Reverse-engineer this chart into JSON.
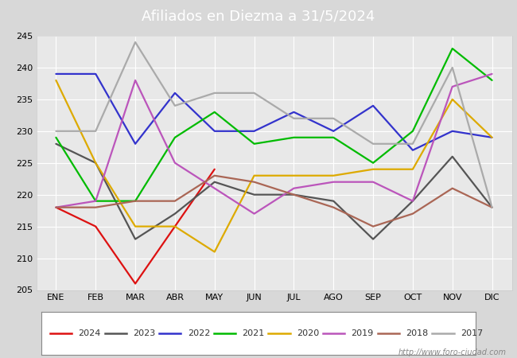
{
  "title": "Afiliados en Diezma a 31/5/2024",
  "url_text": "http://www.foro-ciudad.com",
  "months": [
    "ENE",
    "FEB",
    "MAR",
    "ABR",
    "MAY",
    "JUN",
    "JUL",
    "AGO",
    "SEP",
    "OCT",
    "NOV",
    "DIC"
  ],
  "ylim": [
    205,
    245
  ],
  "yticks": [
    205,
    210,
    215,
    220,
    225,
    230,
    235,
    240,
    245
  ],
  "series": [
    {
      "year": "2024",
      "color": "#dd1111",
      "data": [
        218,
        215,
        206,
        215,
        224,
        null,
        null,
        null,
        null,
        null,
        null,
        null
      ]
    },
    {
      "year": "2023",
      "color": "#555555",
      "data": [
        228,
        225,
        213,
        217,
        222,
        220,
        220,
        219,
        213,
        219,
        226,
        218
      ]
    },
    {
      "year": "2022",
      "color": "#3333cc",
      "data": [
        239,
        239,
        228,
        236,
        230,
        230,
        233,
        230,
        234,
        227,
        230,
        229
      ]
    },
    {
      "year": "2021",
      "color": "#00bb00",
      "data": [
        229,
        219,
        219,
        229,
        233,
        228,
        229,
        229,
        225,
        230,
        243,
        238
      ]
    },
    {
      "year": "2020",
      "color": "#ddaa00",
      "data": [
        238,
        225,
        215,
        215,
        211,
        223,
        223,
        223,
        224,
        224,
        235,
        229
      ]
    },
    {
      "year": "2019",
      "color": "#bb55bb",
      "data": [
        218,
        219,
        238,
        225,
        221,
        217,
        221,
        222,
        222,
        219,
        237,
        239
      ]
    },
    {
      "year": "2018",
      "color": "#aa6655",
      "data": [
        218,
        218,
        219,
        219,
        223,
        222,
        220,
        218,
        215,
        217,
        221,
        218
      ]
    },
    {
      "year": "2017",
      "color": "#aaaaaa",
      "data": [
        230,
        230,
        244,
        234,
        236,
        236,
        232,
        232,
        228,
        228,
        240,
        218
      ]
    }
  ],
  "header_color": "#4a86c8",
  "fig_bg": "#d8d8d8",
  "plot_bg": "#e8e8e8",
  "grid_color": "#ffffff",
  "title_fontsize": 13,
  "tick_fontsize": 8,
  "legend_fontsize": 8,
  "linewidth": 1.6
}
